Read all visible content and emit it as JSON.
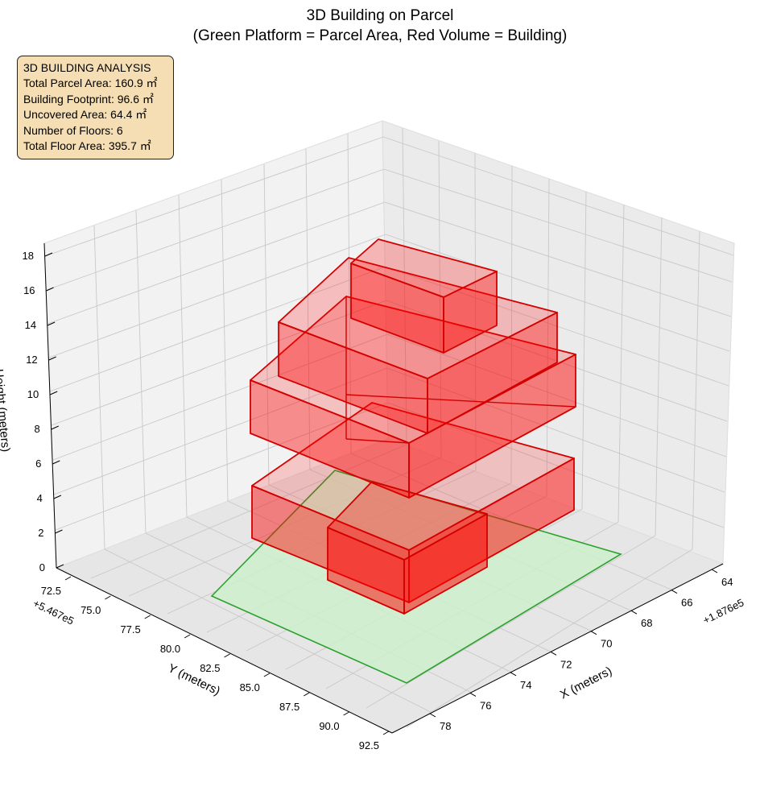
{
  "chart_data": {
    "type": "3d-polygon",
    "title": "3D Building on Parcel",
    "subtitle": "(Green Platform = Parcel Area, Red Volume = Building)",
    "xlabel": "X (meters)",
    "ylabel": "Y (meters)",
    "zlabel": "Height (meters)",
    "x_offset_label": "+1.876e5",
    "y_offset_label": "+5.467e5",
    "x_ticks": [
      "64",
      "66",
      "68",
      "70",
      "72",
      "74",
      "76",
      "78"
    ],
    "y_ticks": [
      "72.5",
      "75.0",
      "77.5",
      "80.0",
      "82.5",
      "85.0",
      "87.5",
      "90.0",
      "92.5"
    ],
    "z_ticks": [
      "0",
      "2",
      "4",
      "6",
      "8",
      "10",
      "12",
      "14",
      "16",
      "18"
    ],
    "grid": true,
    "parcel_color": "#2ca02c",
    "parcel_fill": "#cdeecd",
    "building_color": "#ff0000",
    "building_edge": "#d40000",
    "annotation": {
      "heading": "3D BUILDING ANALYSIS",
      "lines": [
        "Total Parcel Area: 160.9 ㎡",
        "Building Footprint: 96.6 ㎡",
        "Uncovered Area: 64.4 ㎡",
        "Number of Floors: 6",
        "Total Floor Area: 395.7 ㎡"
      ]
    }
  }
}
